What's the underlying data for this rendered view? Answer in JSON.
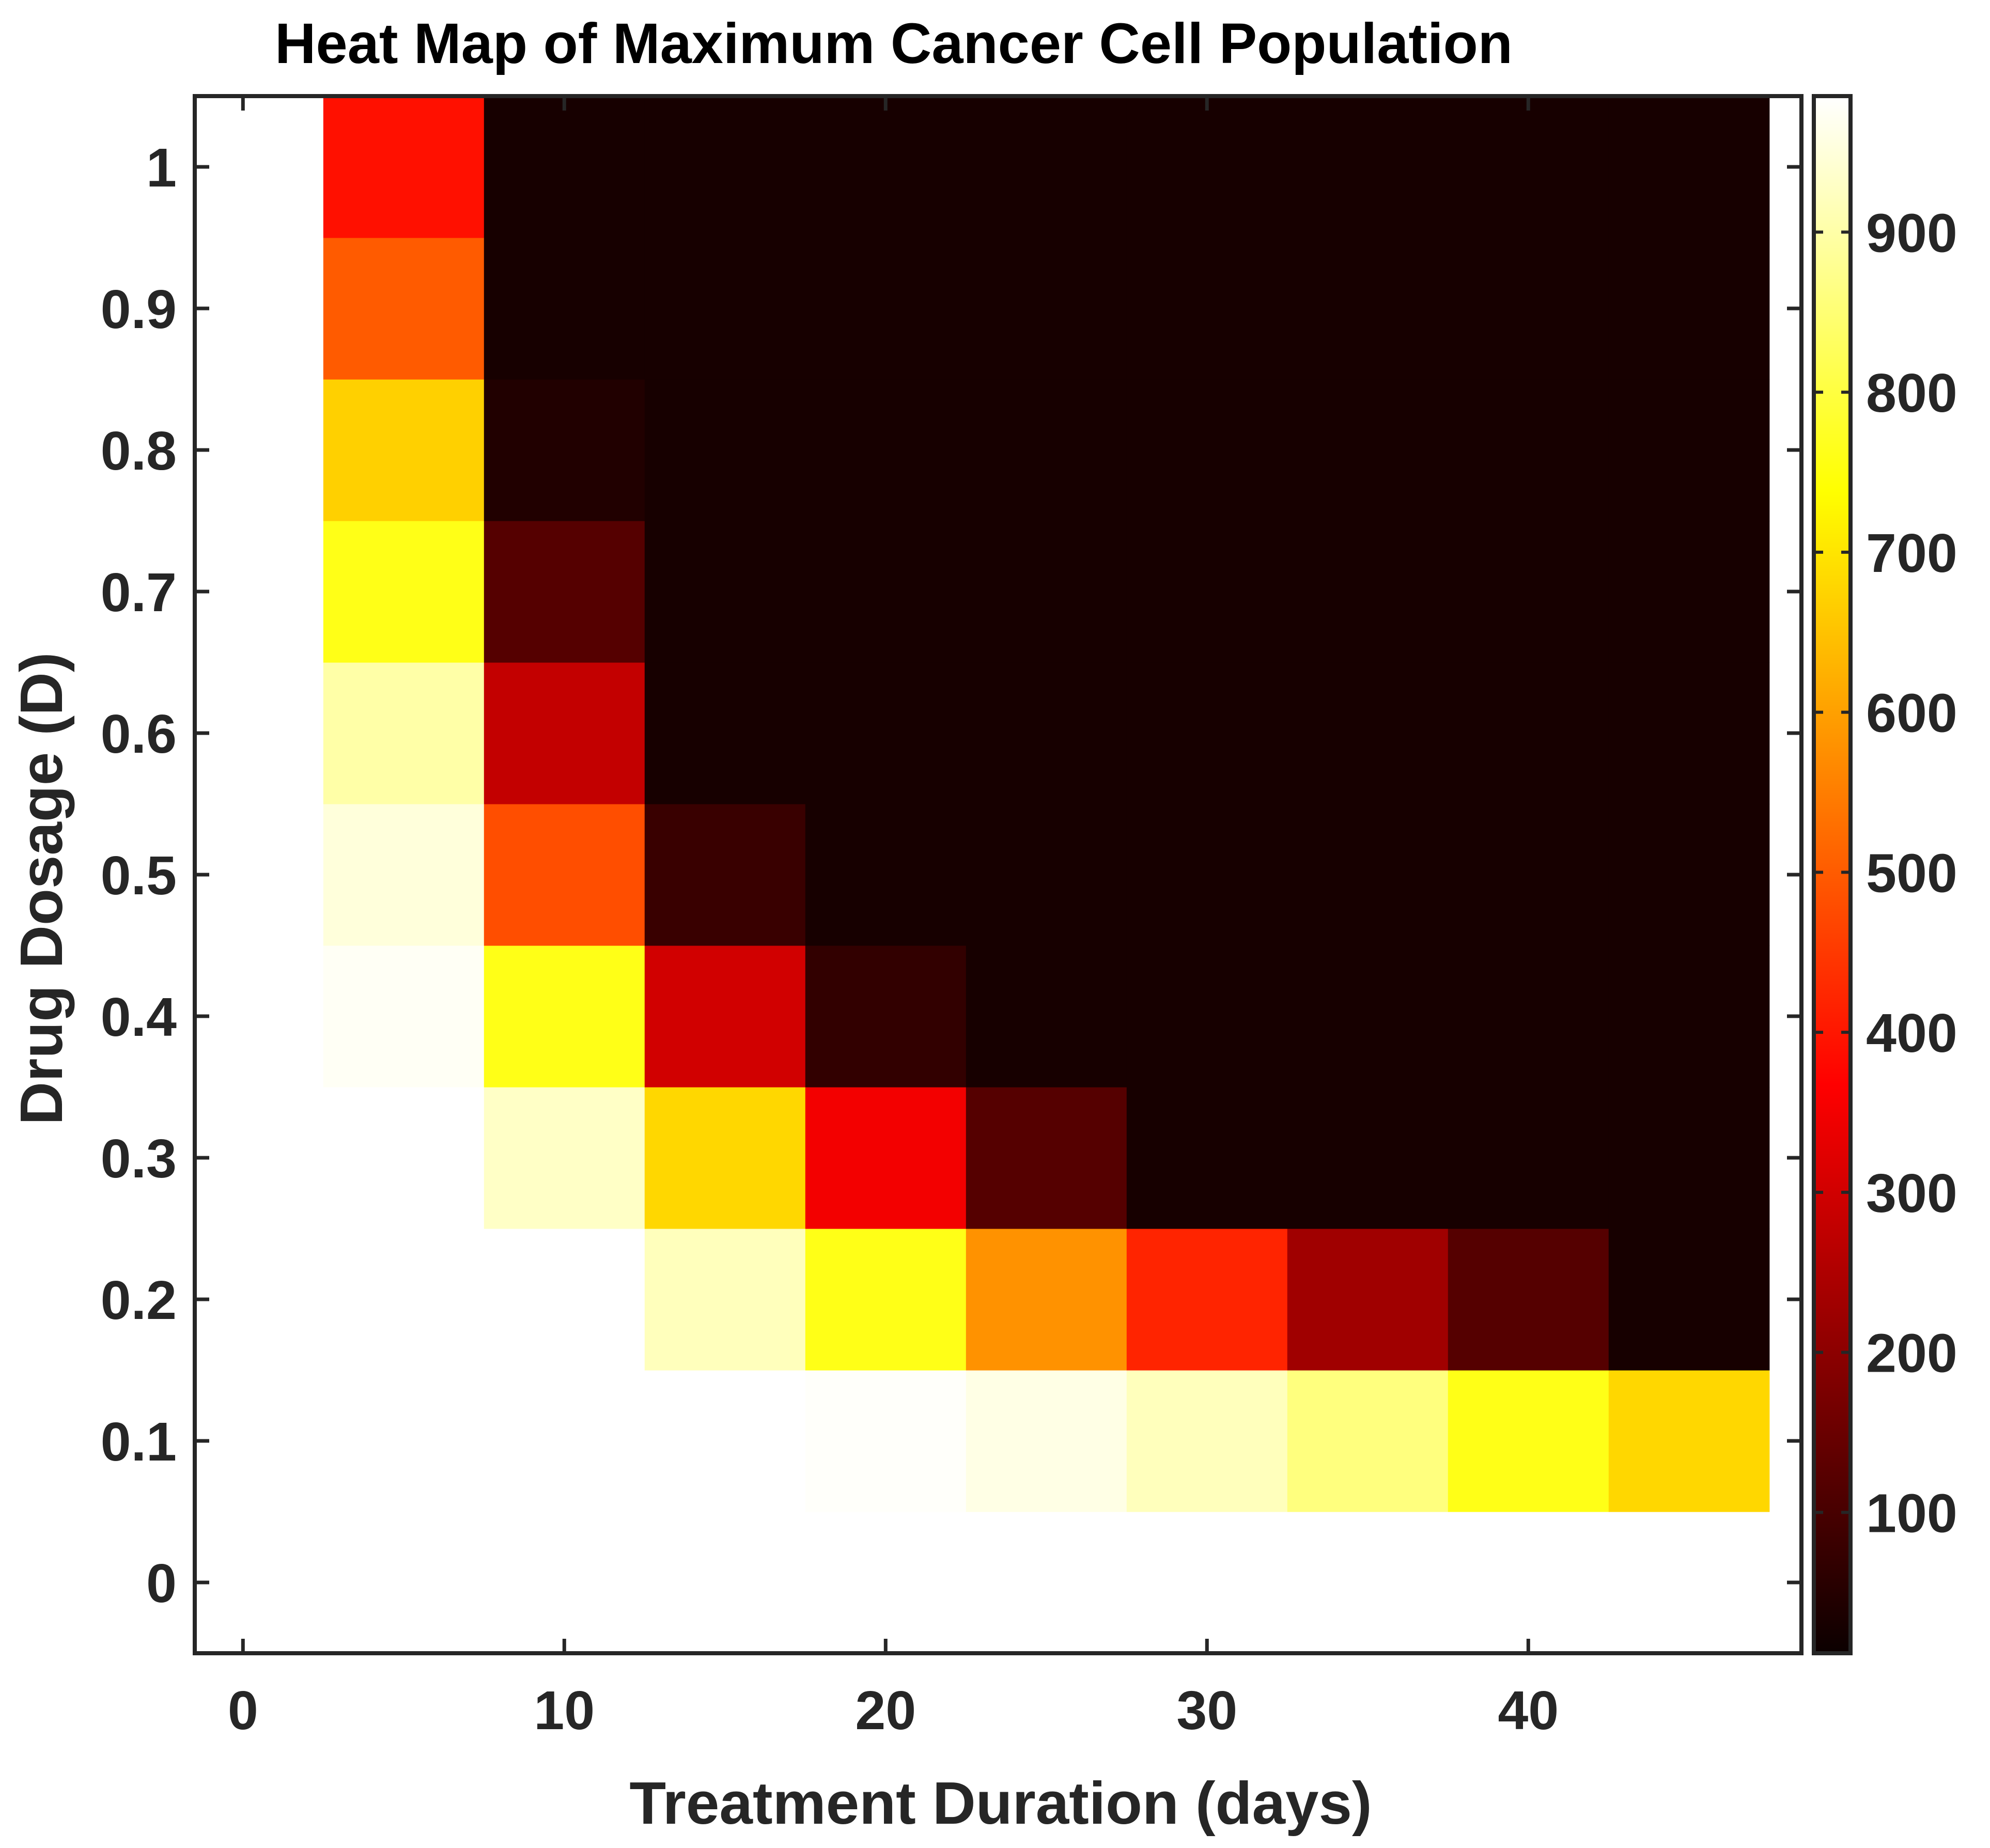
{
  "chart_data": {
    "type": "heatmap",
    "title": "Heat Map of Maximum Cancer Cell Population",
    "xlabel": "Treatment Duration (days)",
    "ylabel": "Drug Dosage (D)",
    "x": [
      0,
      5,
      10,
      15,
      20,
      25,
      30,
      35,
      40,
      45
    ],
    "y": [
      0,
      0.1,
      0.2,
      0.3,
      0.4,
      0.5,
      0.6,
      0.7,
      0.8,
      0.9,
      1
    ],
    "xlim": [
      -1.5,
      48.5
    ],
    "ylim": [
      -0.05,
      1.05
    ],
    "xticks": [
      "0",
      "10",
      "20",
      "30",
      "40"
    ],
    "yticks": [
      "0",
      "0.1",
      "0.2",
      "0.3",
      "0.4",
      "0.5",
      "0.6",
      "0.7",
      "0.8",
      "0.9",
      "1"
    ],
    "values": [
      [
        1000,
        1000,
        1000,
        1000,
        1000,
        1000,
        1000,
        1000,
        1000,
        1000
      ],
      [
        1000,
        1000,
        998,
        990,
        980,
        960,
        920,
        860,
        760,
        680
      ],
      [
        1000,
        995,
        985,
        920,
        760,
        580,
        420,
        230,
        120,
        30
      ],
      [
        1000,
        990,
        930,
        680,
        350,
        120,
        30,
        30,
        30,
        30
      ],
      [
        1000,
        975,
        760,
        300,
        70,
        30,
        30,
        30,
        30,
        30
      ],
      [
        1000,
        950,
        480,
        80,
        30,
        30,
        30,
        30,
        30,
        30
      ],
      [
        1000,
        900,
        280,
        30,
        30,
        30,
        30,
        30,
        30,
        30
      ],
      [
        995,
        760,
        120,
        30,
        30,
        30,
        30,
        30,
        30,
        30
      ],
      [
        1000,
        670,
        45,
        30,
        30,
        30,
        30,
        30,
        30,
        30
      ],
      [
        1000,
        500,
        30,
        30,
        30,
        30,
        30,
        30,
        30,
        30
      ],
      [
        1000,
        390,
        30,
        30,
        30,
        30,
        30,
        30,
        30,
        30
      ]
    ],
    "colormap": "hot",
    "colorbar": {
      "ticks": [
        100,
        200,
        300,
        400,
        500,
        600,
        700,
        800,
        900
      ],
      "tick_labels": [
        "100",
        "200",
        "300",
        "400",
        "500",
        "600",
        "700",
        "800",
        "900"
      ],
      "range": [
        12,
        985
      ]
    }
  }
}
